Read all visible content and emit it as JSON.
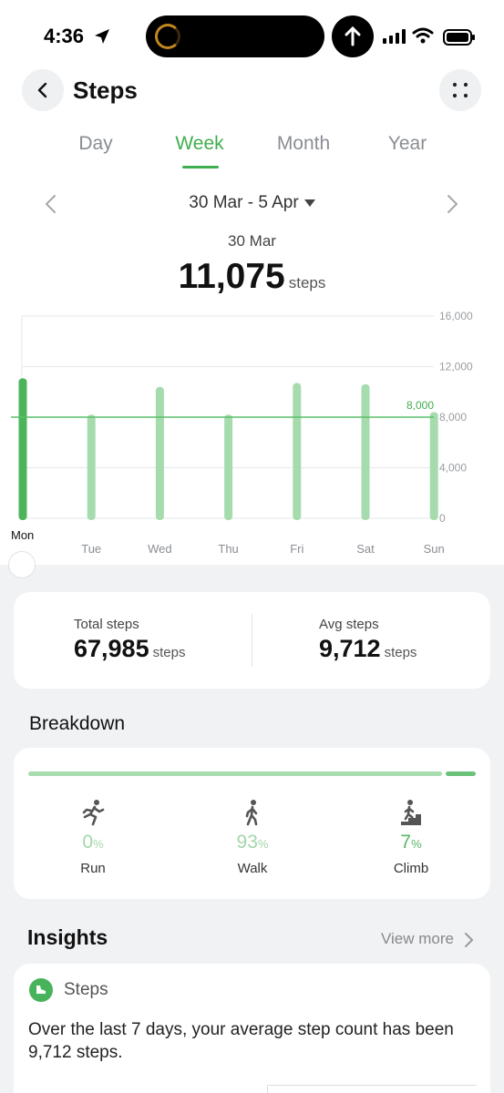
{
  "status_bar": {
    "time": "4:36"
  },
  "header": {
    "title": "Steps"
  },
  "tabs": [
    {
      "label": "Day",
      "active": false
    },
    {
      "label": "Week",
      "active": true
    },
    {
      "label": "Month",
      "active": false
    },
    {
      "label": "Year",
      "active": false
    }
  ],
  "date_range": "30 Mar - 5 Apr",
  "selected": {
    "date": "30 Mar",
    "value": "11,075",
    "unit": "steps"
  },
  "chart_data": {
    "type": "bar",
    "categories": [
      "Mon",
      "Tue",
      "Wed",
      "Thu",
      "Fri",
      "Sat",
      "Sun"
    ],
    "values": [
      11075,
      8200,
      10400,
      8200,
      10700,
      10600,
      8400
    ],
    "selected_index": 0,
    "y_ticks": [
      "16,000",
      "12,000",
      "8,000",
      "4,000",
      "0"
    ],
    "ylim": [
      0,
      16000
    ],
    "goal": {
      "value": 8000,
      "label": "8,000"
    },
    "colors": {
      "selected": "#4cb55c",
      "bar": "#a6dcad",
      "goal": "#5bbf6a",
      "grid": "#e6e7e9"
    }
  },
  "totals": {
    "total_label": "Total steps",
    "total_value": "67,985",
    "total_unit": "steps",
    "avg_label": "Avg steps",
    "avg_value": "9,712",
    "avg_unit": "steps"
  },
  "breakdown": {
    "title": "Breakdown",
    "items": [
      {
        "label": "Run",
        "value": "0",
        "pct_sign": "%",
        "icon": "run-icon"
      },
      {
        "label": "Walk",
        "value": "93",
        "pct_sign": "%",
        "icon": "walk-icon"
      },
      {
        "label": "Climb",
        "value": "7",
        "pct_sign": "%",
        "icon": "climb-icon"
      }
    ]
  },
  "insights": {
    "title": "Insights",
    "view_more": "View more",
    "card_title": "Steps",
    "card_text": "Over the last 7 days, your average step count has been 9,712 steps."
  }
}
